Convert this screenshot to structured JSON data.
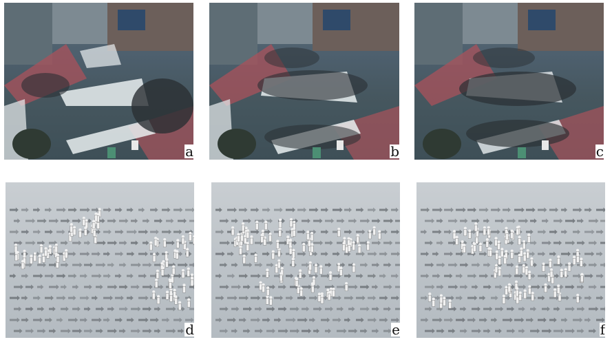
{
  "panels": [
    {
      "id": "a",
      "label": "a",
      "kind": "photo"
    },
    {
      "id": "b",
      "label": "b",
      "kind": "photo"
    },
    {
      "id": "c",
      "label": "c",
      "kind": "photo"
    },
    {
      "id": "d",
      "label": "d",
      "kind": "simulation"
    },
    {
      "id": "e",
      "label": "e",
      "kind": "simulation"
    },
    {
      "id": "f",
      "label": "f",
      "kind": "simulation"
    }
  ],
  "colors": {
    "road": "#4b5a63",
    "crosswalk": "#e9eef0",
    "red_zone": "#a9525b",
    "crowd": "#2a2f33",
    "sim_floor": "#bfc5ca",
    "arrow": "#6f7479",
    "agent": "#f1f1f1"
  }
}
